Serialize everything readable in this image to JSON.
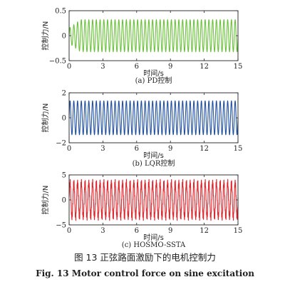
{
  "chart_data": [
    {
      "type": "line",
      "caption": "(a) PD控制",
      "xlabel": "时间/s",
      "ylabel": "控制力/N",
      "xlim": [
        0,
        15
      ],
      "ylim": [
        -0.5,
        0.5
      ],
      "xticks": [
        0,
        3,
        6,
        9,
        12,
        15
      ],
      "yticks": [
        -0.5,
        0,
        0.5
      ],
      "color": "#6ac23a",
      "series": [
        {
          "signal": "sine",
          "frequency_hz": 3.0,
          "amplitude": 0.32,
          "offset": 0.0,
          "initial_transient": "amplitude ~0.15 from 0 s, settling to steady state by ~1 s"
        }
      ]
    },
    {
      "type": "line",
      "caption": "(b) LQR控制",
      "xlabel": "时间/s",
      "ylabel": "控制力/N",
      "xlim": [
        0,
        15
      ],
      "ylim": [
        -2,
        2
      ],
      "xticks": [
        0,
        3,
        6,
        9,
        12,
        15
      ],
      "yticks": [
        -2,
        0,
        2
      ],
      "color": "#1f4fa0",
      "series": [
        {
          "signal": "sine",
          "frequency_hz": 3.0,
          "amplitude": 1.35,
          "offset": 0.0
        }
      ]
    },
    {
      "type": "line",
      "caption": "(c) HOSMO-SSTA",
      "xlabel": "时间/s",
      "ylabel": "控制力/N",
      "xlim": [
        0,
        15
      ],
      "ylim": [
        -5,
        5
      ],
      "xticks": [
        0,
        3,
        6,
        9,
        12,
        15
      ],
      "yticks": [
        -5,
        0,
        5
      ],
      "color": "#e0242a",
      "series": [
        {
          "signal": "sine with superimposed high-frequency chattering",
          "frequency_hz": 3.0,
          "amplitude": 3.6,
          "offset": 0.0,
          "peak_range": [
            -4.2,
            4.4
          ]
        }
      ]
    }
  ],
  "captions": {
    "cn": "图 13    正弦路面激励下的电机控制力",
    "en": "Fig. 13    Motor control force on sine excitation"
  }
}
